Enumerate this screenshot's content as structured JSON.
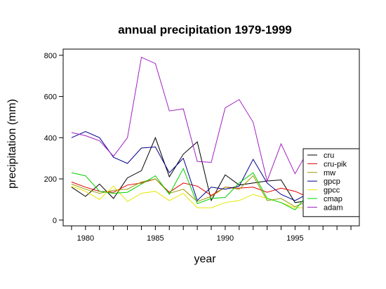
{
  "chart_data": {
    "type": "line",
    "title": "annual precipitation 1979-1999",
    "xlabel": "year",
    "ylabel": "precipitation (mm)",
    "xlim": [
      1978.4,
      1999.6
    ],
    "ylim": [
      -28,
      830
    ],
    "x_ticks": [
      1980,
      1985,
      1990,
      1995
    ],
    "y_ticks": [
      0,
      200,
      400,
      600,
      800
    ],
    "grid": false,
    "legend_position": "bottom-right",
    "x": [
      1979,
      1980,
      1981,
      1982,
      1983,
      1984,
      1985,
      1986,
      1987,
      1988,
      1989,
      1990,
      1991,
      1992,
      1993,
      1994,
      1995,
      1996
    ],
    "series": [
      {
        "name": "cru",
        "color": "#000000",
        "values": [
          160,
          115,
          175,
          105,
          205,
          240,
          400,
          210,
          320,
          380,
          95,
          220,
          170,
          180,
          190,
          195,
          85,
          95
        ]
      },
      {
        "name": "cru-pik",
        "color": "#e00000",
        "values": [
          185,
          160,
          140,
          135,
          170,
          180,
          200,
          135,
          180,
          165,
          120,
          160,
          155,
          160,
          135,
          155,
          140,
          110
        ]
      },
      {
        "name": "mw",
        "color": "#9a9a00",
        "values": [
          175,
          150,
          130,
          145,
          150,
          185,
          200,
          130,
          150,
          90,
          115,
          160,
          150,
          215,
          95,
          105,
          65,
          95
        ]
      },
      {
        "name": "gpcp",
        "color": "#00008b",
        "values": [
          400,
          430,
          400,
          305,
          275,
          350,
          355,
          230,
          300,
          95,
          160,
          150,
          165,
          295,
          180,
          125,
          95,
          130
        ]
      },
      {
        "name": "gpcc",
        "color": "#e6e600",
        "values": [
          165,
          140,
          100,
          165,
          90,
          130,
          140,
          95,
          130,
          60,
          60,
          85,
          95,
          125,
          105,
          85,
          60,
          60
        ]
      },
      {
        "name": "cmap",
        "color": "#00d000",
        "values": [
          230,
          215,
          140,
          130,
          135,
          175,
          215,
          125,
          250,
          80,
          105,
          110,
          180,
          230,
          105,
          85,
          50,
          130
        ]
      },
      {
        "name": "adam",
        "color": "#a020c0",
        "values": [
          425,
          410,
          385,
          310,
          400,
          790,
          760,
          530,
          540,
          285,
          280,
          545,
          585,
          475,
          190,
          370,
          225,
          345
        ]
      }
    ]
  }
}
